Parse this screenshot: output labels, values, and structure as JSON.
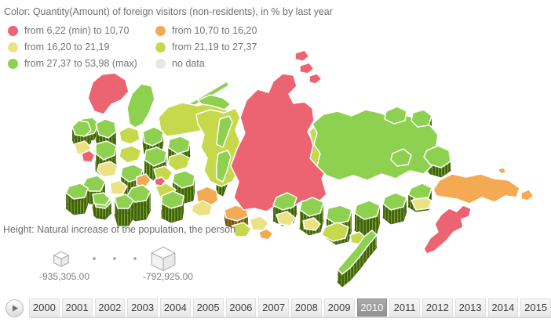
{
  "header": {
    "title": "Color: Quantity(Amount) of foreign visitors (non-residents), in % by last year"
  },
  "legend": {
    "items": [
      {
        "label": "from 6,22 (min) to 10,70",
        "color": "#ec6472"
      },
      {
        "label": "from 10,70 to 16,20",
        "color": "#f4aa52"
      },
      {
        "label": "from 16,20 to 21,19",
        "color": "#ece283"
      },
      {
        "label": "from 21,19 to 27,37",
        "color": "#c6d94d"
      },
      {
        "label": "from 27,37 to 53,98 (max)",
        "color": "#8ed04f"
      },
      {
        "label": "no data",
        "color": "#e8e8e8"
      }
    ]
  },
  "height_legend": {
    "title": "Height: Natural increase of the population, the person",
    "min_value": "-935,305.00",
    "max_value": "-792,925.00"
  },
  "timeline": {
    "years": [
      "2000",
      "2001",
      "2002",
      "2003",
      "2004",
      "2005",
      "2006",
      "2007",
      "2008",
      "2009",
      "2010",
      "2011",
      "2012",
      "2013",
      "2014",
      "2015"
    ],
    "selected": "2010",
    "selected_tab_color": "#8f8f8f",
    "selected_tab_color_light": "#ababab"
  },
  "map": {
    "palette": {
      "red": "#ec6472",
      "orange": "#f4aa52",
      "yellow": "#ece283",
      "yellowGreen": "#c6d94d",
      "green": "#8ed04f",
      "noData": "#e8e8e8",
      "wallGreen": "#42610f",
      "wallGreenLight": "#76a02b",
      "wallBrown": "#6e5618",
      "wallBrownLight": "#a8853b"
    }
  }
}
